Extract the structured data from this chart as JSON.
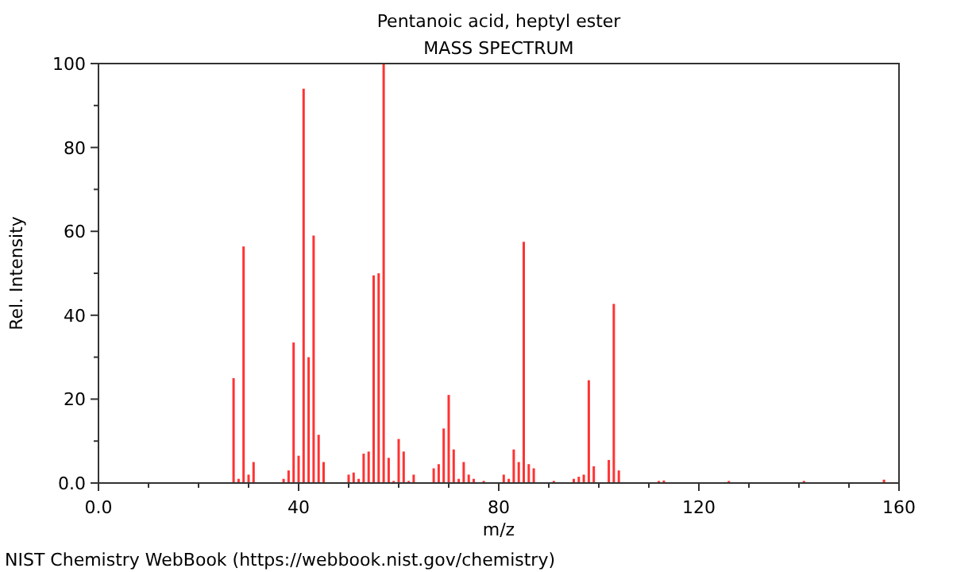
{
  "chart_data": {
    "type": "bar",
    "title": "Pentanoic acid, heptyl ester",
    "subtitle": "MASS SPECTRUM",
    "xlabel": "m/z",
    "ylabel": "Rel. Intensity",
    "x": [
      27,
      28,
      29,
      30,
      31,
      37,
      38,
      39,
      40,
      41,
      42,
      43,
      44,
      45,
      50,
      51,
      52,
      53,
      54,
      55,
      56,
      57,
      58,
      59,
      60,
      61,
      62,
      63,
      67,
      68,
      69,
      70,
      71,
      72,
      73,
      74,
      75,
      77,
      81,
      82,
      83,
      84,
      85,
      86,
      87,
      91,
      95,
      96,
      97,
      98,
      99,
      102,
      103,
      104,
      112,
      113,
      126,
      141,
      157
    ],
    "values": [
      25,
      1,
      56.4,
      2,
      5,
      1,
      3,
      33.5,
      6.5,
      94,
      30,
      59,
      11.5,
      5,
      2,
      2.5,
      1,
      7,
      7.5,
      49.5,
      50,
      100,
      6,
      0.5,
      10.5,
      7.5,
      0.5,
      2,
      3.5,
      4.5,
      13,
      21,
      8,
      1,
      5,
      2,
      1,
      0.5,
      2,
      1,
      8,
      5,
      57.5,
      4.5,
      3.5,
      0.5,
      1,
      1.5,
      2,
      24.5,
      4,
      5.5,
      42.7,
      3,
      0.5,
      0.6,
      0.5,
      0.5,
      0.8
    ],
    "color": "#ff3333",
    "xlim": [
      0,
      160
    ],
    "xticks": [
      {
        "value": 0,
        "label": "0.0"
      },
      {
        "value": 10,
        "label": null
      },
      {
        "value": 20,
        "label": null
      },
      {
        "value": 30,
        "label": null
      },
      40,
      {
        "value": 50,
        "label": null
      },
      {
        "value": 60,
        "label": null
      },
      {
        "value": 70,
        "label": null
      },
      80,
      {
        "value": 90,
        "label": null
      },
      {
        "value": 100,
        "label": null
      },
      {
        "value": 110,
        "label": null
      },
      120,
      {
        "value": 130,
        "label": null
      },
      {
        "value": 140,
        "label": null
      },
      {
        "value": 150,
        "label": null
      },
      160
    ],
    "ylim": [
      0,
      100
    ],
    "yticks": [
      {
        "value": 0,
        "label": "0.0"
      },
      {
        "value": 10,
        "label": null
      },
      20,
      {
        "value": 30,
        "label": null
      },
      40,
      {
        "value": 50,
        "label": null
      },
      60,
      {
        "value": 70,
        "label": null
      },
      80,
      {
        "value": 90,
        "label": null
      },
      100
    ],
    "annotations": [
      "NIST Chemistry WebBook (https://webbook.nist.gov/chemistry)"
    ]
  }
}
